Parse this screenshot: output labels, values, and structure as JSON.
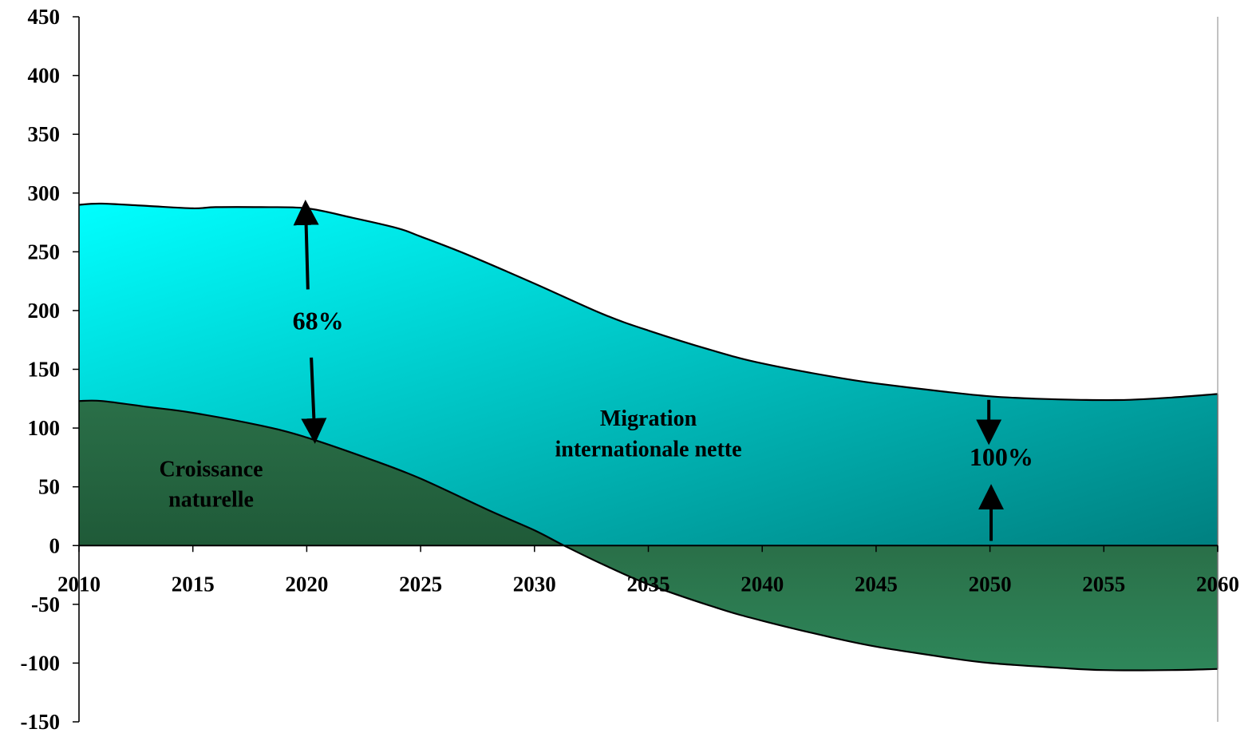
{
  "chart_data": {
    "type": "area",
    "title": "",
    "xlabel": "",
    "ylabel": "",
    "xlim": [
      2010,
      2060
    ],
    "ylim": [
      -150,
      450
    ],
    "x_ticks": [
      2010,
      2015,
      2020,
      2025,
      2030,
      2035,
      2040,
      2045,
      2050,
      2055,
      2060
    ],
    "y_ticks": [
      -150,
      -100,
      -50,
      0,
      50,
      100,
      150,
      200,
      250,
      300,
      350,
      400,
      450
    ],
    "grid": false,
    "colors": {
      "croissance_top": "#2a6f48",
      "croissance_bottom": "#1f5a38",
      "croissance_neg_top": "#2a6f48",
      "croissance_neg_bottom": "#2e875a",
      "migration_top": "#00ffff",
      "migration_bottom": "#008080"
    },
    "series": [
      {
        "key": "croissance",
        "x": [
          2010,
          2011,
          2013,
          2015,
          2018,
          2020,
          2023,
          2025,
          2028,
          2030,
          2031.3,
          2033,
          2035,
          2038,
          2040,
          2043,
          2045,
          2048,
          2050,
          2053,
          2055,
          2058,
          2060
        ],
        "values": [
          123,
          123,
          118,
          113,
          102,
          92,
          72,
          57,
          30,
          13,
          0,
          -16,
          -33,
          -53,
          -64,
          -78,
          -86,
          -95,
          -100,
          -104,
          -106,
          -106,
          -105
        ]
      },
      {
        "key": "total",
        "x": [
          2010,
          2011,
          2013,
          2015,
          2016,
          2018,
          2020,
          2022,
          2024,
          2025,
          2027,
          2030,
          2033,
          2035,
          2038,
          2040,
          2043,
          2045,
          2048,
          2050,
          2052,
          2054,
          2056,
          2058,
          2060
        ],
        "values": [
          290,
          291,
          289,
          287,
          288,
          288,
          287,
          279,
          270,
          263,
          248,
          223,
          197,
          183,
          165,
          155,
          144,
          138,
          131,
          127,
          125,
          124,
          124,
          126,
          129
        ]
      }
    ],
    "annotations": [
      {
        "text": "68%",
        "x": 2020.5,
        "y": 184
      },
      {
        "text": "100%",
        "x": 2050.5,
        "y": 68
      },
      {
        "text": "Croissance",
        "x": 2015.8,
        "y": 59
      },
      {
        "text": "naturelle",
        "x": 2015.8,
        "y": 33
      },
      {
        "text": "Migration",
        "x": 2035,
        "y": 102
      },
      {
        "text": "internationale nette",
        "x": 2035,
        "y": 76
      }
    ],
    "arrows": [
      {
        "x1": 2020.05,
        "y1": 218,
        "x2": 2019.95,
        "y2": 289
      },
      {
        "x1": 2020.2,
        "y1": 160,
        "x2": 2020.35,
        "y2": 92
      },
      {
        "x1": 2049.95,
        "y1": 124,
        "x2": 2049.95,
        "y2": 91
      },
      {
        "x1": 2050.05,
        "y1": 4,
        "x2": 2050.05,
        "y2": 47
      }
    ]
  }
}
